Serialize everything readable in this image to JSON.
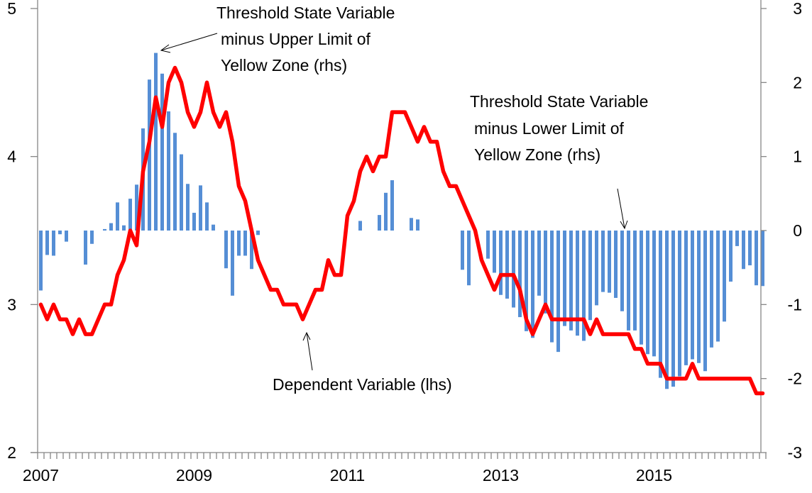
{
  "chart_data": {
    "type": "bar+line",
    "x": [
      "2007-01",
      "2007-02",
      "2007-03",
      "2007-04",
      "2007-05",
      "2007-06",
      "2007-07",
      "2007-08",
      "2007-09",
      "2007-10",
      "2007-11",
      "2007-12",
      "2008-01",
      "2008-02",
      "2008-03",
      "2008-04",
      "2008-05",
      "2008-06",
      "2008-07",
      "2008-08",
      "2008-09",
      "2008-10",
      "2008-11",
      "2008-12",
      "2009-01",
      "2009-02",
      "2009-03",
      "2009-04",
      "2009-05",
      "2009-06",
      "2009-07",
      "2009-08",
      "2009-09",
      "2009-10",
      "2009-11",
      "2009-12",
      "2010-01",
      "2010-02",
      "2010-03",
      "2010-04",
      "2010-05",
      "2010-06",
      "2010-07",
      "2010-08",
      "2010-09",
      "2010-10",
      "2010-11",
      "2010-12",
      "2011-01",
      "2011-02",
      "2011-03",
      "2011-04",
      "2011-05",
      "2011-06",
      "2011-07",
      "2011-08",
      "2011-09",
      "2011-10",
      "2011-11",
      "2011-12",
      "2012-01",
      "2012-02",
      "2012-03",
      "2012-04",
      "2012-05",
      "2012-06",
      "2012-07",
      "2012-08",
      "2012-09",
      "2012-10",
      "2012-11",
      "2012-12",
      "2013-01",
      "2013-02",
      "2013-03",
      "2013-04",
      "2013-05",
      "2013-06",
      "2013-07",
      "2013-08",
      "2013-09",
      "2013-10",
      "2013-11",
      "2013-12",
      "2014-01",
      "2014-02",
      "2014-03",
      "2014-04",
      "2014-05",
      "2014-06",
      "2014-07",
      "2014-08",
      "2014-09",
      "2014-10",
      "2014-11",
      "2014-12",
      "2015-01",
      "2015-02",
      "2015-03",
      "2015-04",
      "2015-05",
      "2015-06",
      "2015-07",
      "2015-08",
      "2015-09",
      "2015-10",
      "2015-11",
      "2015-12",
      "2016-01",
      "2016-02",
      "2016-03",
      "2016-04",
      "2016-05",
      "2016-06"
    ],
    "series": [
      {
        "kind": "bar",
        "axis": "right",
        "color": "#558ED5",
        "values": [
          -0.81,
          -0.33,
          -0.34,
          -0.05,
          -0.15,
          0,
          0,
          -0.46,
          -0.18,
          0,
          0.02,
          0.1,
          0.38,
          0.07,
          0.43,
          0.62,
          1.38,
          2.04,
          2.4,
          2.12,
          1.61,
          1.32,
          1.03,
          0.63,
          0.24,
          0.61,
          0.38,
          0.08,
          0,
          -0.51,
          -0.88,
          -0.34,
          -0.34,
          -0.52,
          -0.06,
          0,
          0,
          0,
          0,
          0,
          0,
          0,
          0,
          0,
          0,
          0,
          0,
          0,
          0,
          0,
          0.13,
          0,
          0,
          0.21,
          0.51,
          0.68,
          0,
          0,
          0.17,
          0.15,
          0,
          0,
          0,
          0,
          0,
          0,
          -0.53,
          -0.74,
          0,
          0,
          -0.38,
          -0.57,
          -0.87,
          -0.92,
          -1.04,
          -1.17,
          -1.36,
          -1.45,
          -0.88,
          -1.12,
          -1.51,
          -1.64,
          -1.29,
          -1.35,
          -1.42,
          -1.49,
          -1.21,
          -1.01,
          -0.83,
          -0.84,
          -0.91,
          -1.09,
          -1.35,
          -1.35,
          -1.54,
          -1.67,
          -1.7,
          -1.99,
          -2.14,
          -2.11,
          -1.97,
          -1.82,
          -1.74,
          -1.79,
          -1.9,
          -1.58,
          -1.5,
          -1.23,
          -0.69,
          -0.21,
          -0.52,
          -0.47,
          -0.74,
          -0.75
        ]
      },
      {
        "kind": "line",
        "axis": "left",
        "color": "#FF0000",
        "values": [
          3.0,
          2.9,
          3.0,
          2.9,
          2.9,
          2.8,
          2.9,
          2.8,
          2.8,
          2.9,
          3.0,
          3.0,
          3.2,
          3.3,
          3.5,
          3.4,
          3.9,
          4.1,
          4.4,
          4.2,
          4.5,
          4.6,
          4.5,
          4.3,
          4.2,
          4.3,
          4.5,
          4.3,
          4.2,
          4.3,
          4.1,
          3.8,
          3.7,
          3.5,
          3.3,
          3.2,
          3.1,
          3.1,
          3.0,
          3.0,
          3.0,
          2.9,
          3.0,
          3.1,
          3.1,
          3.3,
          3.2,
          3.2,
          3.6,
          3.7,
          3.9,
          4.0,
          3.9,
          4.0,
          4.0,
          4.3,
          4.3,
          4.3,
          4.2,
          4.1,
          4.2,
          4.1,
          4.1,
          3.9,
          3.8,
          3.8,
          3.7,
          3.6,
          3.5,
          3.3,
          3.2,
          3.1,
          3.2,
          3.2,
          3.2,
          3.1,
          2.9,
          2.8,
          2.9,
          3.0,
          2.9,
          2.9,
          2.9,
          2.9,
          2.9,
          2.9,
          2.8,
          2.9,
          2.8,
          2.8,
          2.8,
          2.8,
          2.8,
          2.7,
          2.7,
          2.6,
          2.6,
          2.6,
          2.5,
          2.5,
          2.5,
          2.5,
          2.6,
          2.5,
          2.5,
          2.5,
          2.5,
          2.5,
          2.5,
          2.5,
          2.5,
          2.5,
          2.4,
          2.4
        ]
      }
    ],
    "xticks": [
      {
        "label": "2007",
        "at": "2007-01"
      },
      {
        "label": "2009",
        "at": "2009-01"
      },
      {
        "label": "2011",
        "at": "2011-01"
      },
      {
        "label": "2013",
        "at": "2013-01"
      },
      {
        "label": "2015",
        "at": "2015-01"
      }
    ],
    "ylim_left": [
      2,
      5
    ],
    "yticks_left": [
      "5",
      "4",
      "3",
      "2"
    ],
    "ylim_right": [
      -3,
      3
    ],
    "yticks_right": [
      "3",
      "2",
      "1",
      "0",
      "-1",
      "-2",
      "-3"
    ],
    "grid": false,
    "legend": "none",
    "annotations": {
      "upper": [
        "Threshold State Variable",
        "minus  Upper Limit of",
        "Yellow Zone (rhs)"
      ],
      "lower": [
        "Threshold State Variable",
        "minus  Lower Limit of",
        "Yellow Zone (rhs)"
      ],
      "dependent": "Dependent Variable (lhs)"
    }
  }
}
